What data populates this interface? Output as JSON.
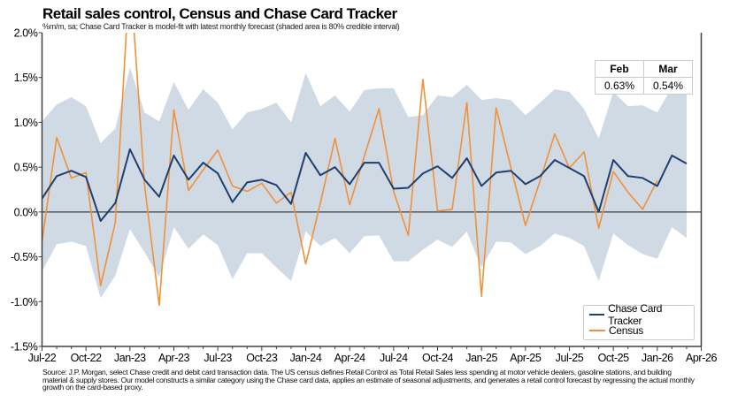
{
  "title": "Retail sales control, Census and Chase Card Tracker",
  "subtitle": "%m/m, sa; Chase Card Tracker is model-fit with latest monthly forecast (shaded area is 80% credible interval)",
  "footnote": "Source: J.P. Morgan, select Chase credit and debit card transaction data. The US census defines Retail Control as Total Retail Sales less spending at motor vehicle dealers, gasoline stations, and building material & supply stores. Our model constructs a similar category using the Chase card data, applies an estimate of seasonal adjustments, and generates a retail control forecast by regressing the actual monthly growth on the card-based proxy.",
  "forecast_table": {
    "headers": [
      "Feb",
      "Mar"
    ],
    "values": [
      "0.63%",
      "0.54%"
    ]
  },
  "colors": {
    "tracker": "#1f3f6e",
    "census": "#f0913a",
    "band": "#d0dae5",
    "axis": "#404040"
  },
  "chart_data": {
    "type": "line",
    "title": "Retail sales control, Census and Chase Card Tracker",
    "ylabel": "%m/m, sa",
    "xlabel": "",
    "ylim": [
      -1.5,
      2.0
    ],
    "yticks": [
      -1.5,
      -1.0,
      -0.5,
      0.0,
      0.5,
      1.0,
      1.5,
      2.0
    ],
    "ytick_labels": [
      "-1.5%",
      "-1.0%",
      "-0.5%",
      "0.0%",
      "0.5%",
      "1.0%",
      "1.5%",
      "2.0%"
    ],
    "x_start": "Jul-22",
    "xlim_months": [
      0,
      45
    ],
    "xtick_months": [
      0,
      3,
      6,
      9,
      12,
      15,
      18,
      21,
      24,
      27,
      30,
      33,
      36,
      39,
      42,
      45
    ],
    "xtick_labels": [
      "Jul-22",
      "Oct-22",
      "Jan-23",
      "Apr-23",
      "Jul-23",
      "Oct-23",
      "Jan-24",
      "Apr-24",
      "Jul-24",
      "Oct-24",
      "Jan-25",
      "Apr-25",
      "Jul-25",
      "Oct-25",
      "Jan-26",
      "Apr-26"
    ],
    "legend": "bottom-right",
    "grid": false,
    "series": [
      {
        "name": "Chase Card Tracker",
        "values": [
          0.15,
          0.4,
          0.46,
          0.39,
          -0.1,
          0.1,
          0.7,
          0.36,
          0.17,
          0.63,
          0.36,
          0.55,
          0.43,
          0.11,
          0.33,
          0.36,
          0.3,
          0.09,
          0.66,
          0.41,
          0.5,
          0.31,
          0.55,
          0.55,
          0.26,
          0.27,
          0.43,
          0.51,
          0.38,
          0.6,
          0.29,
          0.44,
          0.46,
          0.31,
          0.4,
          0.58,
          0.49,
          0.4,
          0.0,
          0.58,
          0.4,
          0.38,
          0.29,
          0.63,
          0.54
        ]
      },
      {
        "name": "Census",
        "values": [
          -0.33,
          0.83,
          0.38,
          0.44,
          -0.82,
          -0.12,
          2.7,
          0.3,
          -1.04,
          1.14,
          0.24,
          0.47,
          0.69,
          0.29,
          0.23,
          0.32,
          0.1,
          0.22,
          -0.58,
          0.1,
          0.82,
          0.08,
          0.62,
          1.15,
          0.23,
          -0.26,
          1.48,
          0.01,
          0.03,
          1.22,
          -0.94,
          1.16,
          0.5,
          -0.15,
          0.35,
          0.87,
          0.49,
          0.67,
          -0.18,
          0.45,
          0.22,
          0.03,
          0.35
        ]
      },
      {
        "name": "80% credible interval upper",
        "values": [
          1.01,
          1.2,
          1.28,
          1.18,
          0.77,
          0.93,
          1.61,
          1.11,
          1.01,
          1.45,
          1.14,
          1.37,
          1.22,
          0.92,
          1.11,
          1.15,
          1.22,
          1.0,
          1.55,
          1.18,
          1.3,
          1.12,
          1.36,
          1.38,
          1.38,
          1.06,
          1.08,
          1.3,
          1.28,
          1.42,
          1.25,
          1.27,
          1.25,
          1.08,
          1.22,
          1.37,
          1.34,
          1.15,
          0.82,
          1.34,
          1.18,
          1.19,
          1.11,
          1.39,
          1.39
        ]
      },
      {
        "name": "80% credible interval lower",
        "values": [
          -0.66,
          -0.36,
          -0.33,
          -0.38,
          -0.96,
          -0.71,
          -0.19,
          -0.45,
          -0.73,
          -0.17,
          -0.41,
          -0.25,
          -0.37,
          -0.75,
          -0.46,
          -0.46,
          -0.62,
          -0.77,
          -0.22,
          -0.38,
          -0.29,
          -0.46,
          -0.27,
          -0.26,
          -0.55,
          -0.55,
          -0.42,
          -0.31,
          -0.39,
          -0.22,
          -0.62,
          -0.33,
          -0.34,
          -0.47,
          -0.38,
          -0.24,
          -0.29,
          -0.38,
          -0.77,
          -0.24,
          -0.37,
          -0.47,
          -0.52,
          -0.17,
          -0.29
        ]
      }
    ]
  }
}
